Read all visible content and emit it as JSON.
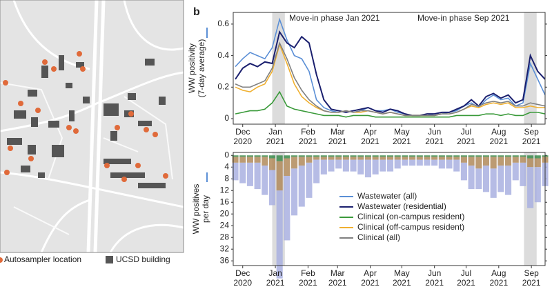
{
  "map": {
    "legend": {
      "autosampler": "Autosampler location",
      "building": "UCSD building"
    }
  },
  "panel_label": "b",
  "chart_data": [
    {
      "type": "line",
      "ylabel": "WW positivity (7-day average)",
      "annotations": [
        "Move-in phase Jan 2021",
        "Move-in phase Sep 2021"
      ],
      "shaded_regions": [
        [
          28,
          40
        ],
        [
          267,
          279
        ]
      ],
      "xlim": [
        -9,
        287
      ],
      "xticks": [
        {
          "value": 0,
          "label": "Dec 2020"
        },
        {
          "value": 31,
          "label": "Jan 2021"
        },
        {
          "value": 62,
          "label": "Feb 2021"
        },
        {
          "value": 90,
          "label": "Mar 2021"
        },
        {
          "value": 121,
          "label": "Apr 2021"
        },
        {
          "value": 151,
          "label": "May 2021"
        },
        {
          "value": 182,
          "label": "Jun 2021"
        },
        {
          "value": 212,
          "label": "Jul 2021"
        },
        {
          "value": 243,
          "label": "Aug 2021"
        },
        {
          "value": 274,
          "label": "Sep 2021"
        }
      ],
      "ylim": [
        -0.035,
        0.674
      ],
      "yticks": [
        0,
        0.2,
        0.4,
        0.6
      ],
      "x": [
        -7,
        0,
        7,
        14,
        21,
        28,
        35,
        42,
        49,
        56,
        63,
        70,
        77,
        84,
        91,
        98,
        105,
        112,
        119,
        126,
        133,
        140,
        147,
        154,
        161,
        168,
        175,
        182,
        189,
        196,
        203,
        210,
        217,
        224,
        231,
        238,
        245,
        252,
        259,
        266,
        273,
        280,
        287
      ],
      "series": [
        {
          "name": "Wastewater (all)",
          "color": "#5b8fd6",
          "values": [
            0.33,
            0.38,
            0.42,
            0.4,
            0.38,
            0.45,
            0.63,
            0.5,
            0.4,
            0.38,
            0.3,
            0.12,
            0.07,
            0.05,
            0.04,
            0.05,
            0.04,
            0.05,
            0.07,
            0.05,
            0.05,
            0.06,
            0.04,
            0.03,
            0.02,
            0.02,
            0.03,
            0.02,
            0.03,
            0.04,
            0.05,
            0.08,
            0.1,
            0.07,
            0.12,
            0.15,
            0.12,
            0.13,
            0.08,
            0.1,
            0.35,
            0.25,
            0.15
          ]
        },
        {
          "name": "Wastewater (residential)",
          "color": "#1a1f6e",
          "values": [
            0.25,
            0.32,
            0.35,
            0.33,
            0.36,
            0.35,
            0.55,
            0.48,
            0.45,
            0.52,
            0.48,
            0.28,
            0.12,
            0.06,
            0.05,
            0.04,
            0.05,
            0.06,
            0.07,
            0.05,
            0.04,
            0.06,
            0.05,
            0.03,
            0.02,
            0.02,
            0.03,
            0.03,
            0.04,
            0.04,
            0.06,
            0.08,
            0.12,
            0.08,
            0.14,
            0.16,
            0.13,
            0.15,
            0.1,
            0.12,
            0.4,
            0.3,
            0.25
          ]
        },
        {
          "name": "Clinical (on-campus resident)",
          "color": "#3a9a3a",
          "values": [
            0.03,
            0.04,
            0.05,
            0.05,
            0.06,
            0.1,
            0.17,
            0.08,
            0.06,
            0.05,
            0.04,
            0.03,
            0.02,
            0.02,
            0.02,
            0.01,
            0.02,
            0.02,
            0.02,
            0.01,
            0.01,
            0.01,
            0.01,
            0.01,
            0.01,
            0.01,
            0.01,
            0.01,
            0.01,
            0.01,
            0.02,
            0.02,
            0.02,
            0.02,
            0.03,
            0.03,
            0.02,
            0.03,
            0.02,
            0.02,
            0.04,
            0.04,
            0.03
          ]
        },
        {
          "name": "Clinical (off-campus resident)",
          "color": "#f0b030",
          "values": [
            0.2,
            0.18,
            0.17,
            0.2,
            0.22,
            0.3,
            0.47,
            0.35,
            0.22,
            0.14,
            0.1,
            0.07,
            0.05,
            0.04,
            0.04,
            0.05,
            0.04,
            0.04,
            0.05,
            0.04,
            0.03,
            0.04,
            0.03,
            0.02,
            0.02,
            0.02,
            0.02,
            0.02,
            0.03,
            0.03,
            0.04,
            0.06,
            0.08,
            0.07,
            0.09,
            0.1,
            0.09,
            0.1,
            0.07,
            0.07,
            0.08,
            0.07,
            0.07
          ]
        },
        {
          "name": "Clinical (all)",
          "color": "#808080",
          "values": [
            0.22,
            0.2,
            0.2,
            0.22,
            0.24,
            0.32,
            0.48,
            0.38,
            0.26,
            0.18,
            0.12,
            0.08,
            0.05,
            0.04,
            0.04,
            0.05,
            0.04,
            0.05,
            0.05,
            0.04,
            0.03,
            0.04,
            0.03,
            0.02,
            0.02,
            0.02,
            0.02,
            0.02,
            0.03,
            0.03,
            0.04,
            0.06,
            0.09,
            0.08,
            0.1,
            0.11,
            0.1,
            0.11,
            0.08,
            0.08,
            0.1,
            0.09,
            0.08
          ]
        }
      ]
    },
    {
      "type": "bar",
      "ylabel": "WW positives per day",
      "inverted": true,
      "shaded_regions": [
        [
          28,
          40
        ],
        [
          267,
          279
        ]
      ],
      "xlim": [
        -9,
        287
      ],
      "xticks": [
        {
          "value": 0,
          "label": "Dec 2020"
        },
        {
          "value": 31,
          "label": "Jan 2021"
        },
        {
          "value": 62,
          "label": "Feb 2021"
        },
        {
          "value": 90,
          "label": "Mar 2021"
        },
        {
          "value": 121,
          "label": "Apr 2021"
        },
        {
          "value": 151,
          "label": "May 2021"
        },
        {
          "value": 182,
          "label": "Jun 2021"
        },
        {
          "value": 212,
          "label": "Jul 2021"
        },
        {
          "value": 243,
          "label": "Aug 2021"
        },
        {
          "value": 274,
          "label": "Sep 2021"
        }
      ],
      "ylim": [
        -1,
        37.6
      ],
      "yticks": [
        0,
        4,
        8,
        12,
        16,
        20,
        24,
        28,
        32,
        36
      ],
      "x": [
        -7,
        0,
        7,
        14,
        21,
        28,
        35,
        42,
        49,
        56,
        63,
        70,
        77,
        84,
        91,
        98,
        105,
        112,
        119,
        126,
        133,
        140,
        147,
        154,
        161,
        168,
        175,
        182,
        189,
        196,
        203,
        210,
        217,
        224,
        231,
        238,
        245,
        252,
        259,
        266,
        273,
        280,
        287
      ],
      "series": [
        {
          "color": "#3a8a4a",
          "values": [
            0.5,
            0.5,
            0.5,
            0.5,
            0.5,
            1,
            2,
            1,
            0.5,
            0.5,
            0.5,
            0.5,
            0.5,
            0.5,
            0.5,
            0.5,
            0.5,
            0.5,
            0.5,
            0.5,
            0.5,
            0.5,
            0.5,
            0.5,
            0.5,
            0.5,
            0.5,
            0.5,
            0.5,
            0.5,
            0.5,
            0.5,
            0.5,
            0.5,
            0.5,
            0.5,
            0.5,
            0.5,
            0.5,
            0.5,
            1,
            1,
            0.5
          ]
        },
        {
          "color": "#b08a5a",
          "values": [
            2,
            2,
            2,
            2,
            3,
            4,
            10,
            6,
            4,
            3,
            2,
            1,
            1,
            1,
            1,
            1,
            1,
            1,
            1,
            1,
            1,
            1,
            1,
            1,
            1,
            1,
            1,
            1,
            1,
            1,
            1,
            2,
            3,
            4,
            3,
            4,
            3,
            3,
            2,
            2,
            3,
            3,
            2
          ]
        },
        {
          "color": "#a9b0e0",
          "values": [
            6,
            7,
            8,
            9,
            10,
            12,
            30,
            22,
            16,
            14,
            12,
            8,
            5,
            4,
            3,
            4,
            4,
            5,
            6,
            5,
            4,
            4,
            3,
            2,
            2,
            2,
            2,
            2,
            3,
            3,
            4,
            6,
            8,
            7,
            9,
            10,
            9,
            10,
            6,
            8,
            14,
            12,
            8
          ]
        }
      ]
    }
  ]
}
